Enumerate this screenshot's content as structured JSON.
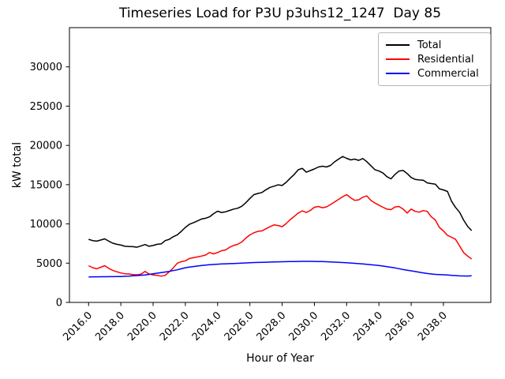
{
  "chart_data": {
    "type": "line",
    "title": "Timeseries Load for P3U p3uhs12_1247  Day 85",
    "xlabel": "Hour of Year",
    "ylabel": "kW total",
    "grid": false,
    "legend_position": "upper right",
    "xlim": [
      2014.8125,
      2040.9375
    ],
    "ylim": [
      0,
      35000
    ],
    "xtick_values": [
      2016,
      2018,
      2020,
      2022,
      2024,
      2026,
      2028,
      2030,
      2032,
      2034,
      2036,
      2038
    ],
    "xtick_labels": [
      "2016.0",
      "2018.0",
      "2020.0",
      "2022.0",
      "2024.0",
      "2026.0",
      "2028.0",
      "2030.0",
      "2032.0",
      "2034.0",
      "2036.0",
      "2038.0"
    ],
    "ytick_values": [
      0,
      5000,
      10000,
      15000,
      20000,
      25000,
      30000
    ],
    "ytick_labels": [
      "0",
      "5000",
      "10000",
      "15000",
      "20000",
      "25000",
      "30000"
    ],
    "x_start": 2016.0,
    "x_step": 0.25,
    "n_points": 96,
    "series": [
      {
        "name": "Total",
        "color": "#000000",
        "values": [
          8040,
          7870,
          7800,
          7950,
          8100,
          7800,
          7540,
          7400,
          7300,
          7150,
          7120,
          7100,
          7030,
          7200,
          7370,
          7150,
          7250,
          7400,
          7450,
          7870,
          8040,
          8370,
          8610,
          9050,
          9550,
          9950,
          10150,
          10380,
          10620,
          10720,
          10900,
          11300,
          11620,
          11460,
          11550,
          11720,
          11890,
          12000,
          12250,
          12700,
          13250,
          13730,
          13880,
          14000,
          14350,
          14650,
          14800,
          14980,
          14900,
          15300,
          15820,
          16300,
          16900,
          17080,
          16580,
          16800,
          17000,
          17250,
          17350,
          17250,
          17450,
          17900,
          18250,
          18590,
          18350,
          18150,
          18250,
          18090,
          18320,
          17920,
          17420,
          16910,
          16740,
          16480,
          16010,
          15740,
          16300,
          16740,
          16810,
          16410,
          15910,
          15670,
          15600,
          15570,
          15230,
          15140,
          15070,
          14470,
          14330,
          14130,
          12890,
          12100,
          11500,
          10500,
          9700,
          9150
        ]
      },
      {
        "name": "Residential",
        "color": "#ff0000",
        "values": [
          4680,
          4430,
          4280,
          4480,
          4680,
          4330,
          4080,
          3900,
          3750,
          3650,
          3620,
          3550,
          3520,
          3600,
          3950,
          3620,
          3500,
          3450,
          3350,
          3450,
          3900,
          4400,
          5000,
          5190,
          5300,
          5590,
          5690,
          5790,
          5900,
          6030,
          6360,
          6190,
          6360,
          6590,
          6690,
          7030,
          7250,
          7400,
          7700,
          8200,
          8600,
          8870,
          9050,
          9110,
          9380,
          9650,
          9880,
          9800,
          9650,
          10050,
          10550,
          10950,
          11390,
          11660,
          11460,
          11720,
          12120,
          12220,
          12060,
          12170,
          12460,
          12790,
          13120,
          13460,
          13730,
          13330,
          12990,
          13060,
          13400,
          13570,
          12990,
          12660,
          12390,
          12120,
          11890,
          11820,
          12160,
          12220,
          11890,
          11390,
          11890,
          11600,
          11500,
          11700,
          11600,
          10890,
          10500,
          9550,
          9100,
          8540,
          8300,
          8040,
          7200,
          6360,
          5900,
          5530
        ]
      },
      {
        "name": "Commercial",
        "color": "#0000ff",
        "values": [
          3250,
          3255,
          3260,
          3265,
          3270,
          3275,
          3280,
          3290,
          3300,
          3325,
          3350,
          3385,
          3420,
          3460,
          3500,
          3575,
          3650,
          3725,
          3800,
          3875,
          3950,
          4050,
          4150,
          4285,
          4420,
          4495,
          4570,
          4635,
          4700,
          4750,
          4800,
          4835,
          4870,
          4895,
          4920,
          4940,
          4960,
          4980,
          5000,
          5030,
          5060,
          5075,
          5090,
          5105,
          5120,
          5135,
          5150,
          5165,
          5180,
          5190,
          5200,
          5210,
          5220,
          5225,
          5230,
          5225,
          5220,
          5210,
          5200,
          5175,
          5150,
          5125,
          5100,
          5075,
          5050,
          5015,
          4980,
          4940,
          4900,
          4850,
          4800,
          4750,
          4700,
          4625,
          4550,
          4475,
          4400,
          4290,
          4180,
          4100,
          4020,
          3935,
          3850,
          3765,
          3680,
          3625,
          3570,
          3545,
          3520,
          3485,
          3450,
          3415,
          3380,
          3370,
          3360,
          3400
        ]
      }
    ]
  }
}
